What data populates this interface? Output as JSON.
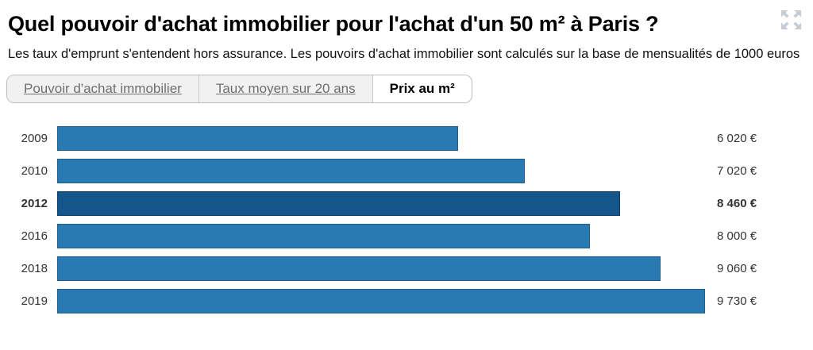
{
  "header": {
    "title": "Quel pouvoir d'achat immobilier pour l'achat d'un 50 m² à Paris ?",
    "subtitle": "Les taux d'emprunt s'entendent hors assurance. Les pouvoirs d'achat immobilier sont calculés sur la base de mensualités de 1000 euros",
    "expand_icon": "expand-arrows-icon",
    "expand_icon_color": "#c7ccd4"
  },
  "tabs": [
    {
      "label": "Pouvoir d'achat immobilier",
      "active": false
    },
    {
      "label": "Taux moyen sur 20 ans",
      "active": false
    },
    {
      "label": "Prix au m²",
      "active": true
    }
  ],
  "chart_data": {
    "type": "bar",
    "orientation": "horizontal",
    "title": "Prix au m²",
    "categories": [
      "2009",
      "2010",
      "2012",
      "2016",
      "2018",
      "2019"
    ],
    "values": [
      6020,
      7020,
      8460,
      8000,
      9060,
      9730
    ],
    "value_labels": [
      "6 020 €",
      "7 020 €",
      "8 460 €",
      "8 000 €",
      "9 060 €",
      "9 730 €"
    ],
    "unit": "€",
    "highlighted_category": "2012",
    "xlim": [
      0,
      9730
    ],
    "grid": false,
    "legend": false,
    "bar_color": "#2979b2",
    "bar_border_color": "#1d5e93",
    "highlight_color": "#14568c",
    "highlight_border_color": "#0a3e6d",
    "label_color": "#333333"
  }
}
